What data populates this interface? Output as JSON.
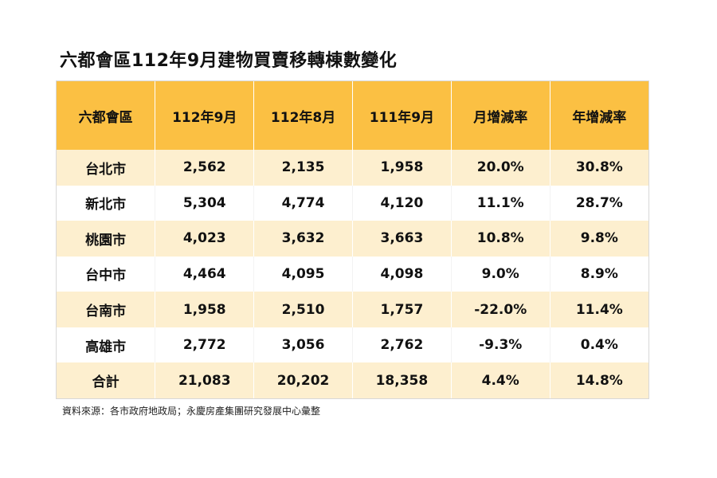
{
  "title": "六都會區112年9月建物買賣移轉棟數變化",
  "table": {
    "headers": [
      "六都會區",
      "112年9月",
      "112年8月",
      "111年9月",
      "月增減率",
      "年增減率"
    ],
    "rows": [
      [
        "台北市",
        "2,562",
        "2,135",
        "1,958",
        "20.0%",
        "30.8%"
      ],
      [
        "新北市",
        "5,304",
        "4,774",
        "4,120",
        "11.1%",
        "28.7%"
      ],
      [
        "桃園市",
        "4,023",
        "3,632",
        "3,663",
        "10.8%",
        "9.8%"
      ],
      [
        "台中市",
        "4,464",
        "4,095",
        "4,098",
        "9.0%",
        "8.9%"
      ],
      [
        "台南市",
        "1,958",
        "2,510",
        "1,757",
        "-22.0%",
        "11.4%"
      ],
      [
        "高雄市",
        "2,772",
        "3,056",
        "2,762",
        "-9.3%",
        "0.4%"
      ],
      [
        "合計",
        "21,083",
        "20,202",
        "18,358",
        "4.4%",
        "14.8%"
      ]
    ]
  },
  "source": "資料來源：各市政府地政局；永慶房產集團研究發展中心彙整",
  "colors": {
    "header_bg": "#fbc043",
    "stripe_bg": "#fdefcf",
    "plain_bg": "#ffffff"
  }
}
